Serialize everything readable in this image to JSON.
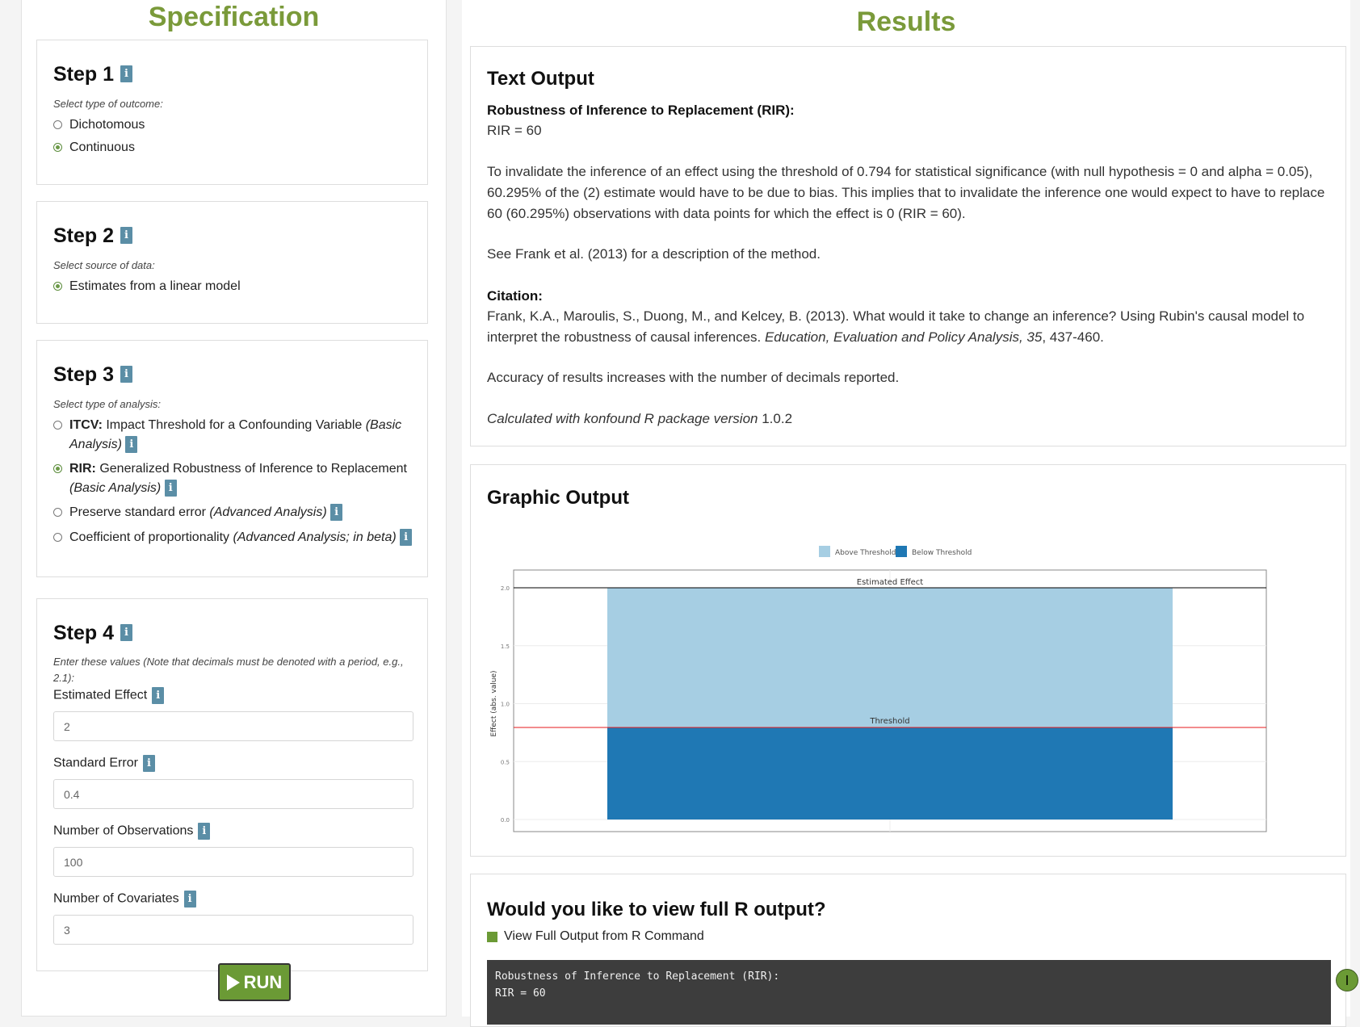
{
  "specification": {
    "title": "Specification",
    "step1": {
      "title": "Step 1",
      "hint": "Select type of outcome:",
      "options": [
        {
          "label": "Dichotomous",
          "checked": false
        },
        {
          "label": "Continuous",
          "checked": true
        }
      ]
    },
    "step2": {
      "title": "Step 2",
      "hint": "Select source of data:",
      "options": [
        {
          "label": "Estimates from a linear model",
          "checked": true
        }
      ]
    },
    "step3": {
      "title": "Step 3",
      "hint": "Select type of analysis:",
      "options": [
        {
          "strong": "ITCV:",
          "text": " Impact Threshold for a Confounding Variable ",
          "em": "(Basic Analysis)",
          "checked": false
        },
        {
          "strong": "RIR:",
          "text": " Generalized Robustness of Inference to Replacement ",
          "em": "(Basic Analysis)",
          "checked": true
        },
        {
          "strong": "",
          "text": "Preserve standard error ",
          "em": "(Advanced Analysis)",
          "checked": false
        },
        {
          "strong": "",
          "text": "Coefficient of proportionality ",
          "em": "(Advanced Analysis; in beta)",
          "checked": false
        }
      ]
    },
    "step4": {
      "title": "Step 4",
      "hint": "Enter these values (Note that decimals must be denoted with a period, e.g., 2.1):",
      "fields": [
        {
          "label": "Estimated Effect",
          "value": "2"
        },
        {
          "label": "Standard Error",
          "value": "0.4"
        },
        {
          "label": "Number of Observations",
          "value": "100"
        },
        {
          "label": "Number of Covariates",
          "value": "3"
        }
      ]
    },
    "run_label": "RUN",
    "info_glyph": "i"
  },
  "results": {
    "title": "Results",
    "text_output": {
      "title": "Text Output",
      "rir_heading": "Robustness of Inference to Replacement (RIR):",
      "rir_value": "RIR = 60",
      "paragraph": "To invalidate the inference of an effect using the threshold of 0.794 for statistical significance (with null hypothesis = 0 and alpha = 0.05), 60.295% of the (2) estimate would have to be due to bias. This implies that to invalidate the inference one would expect to have to replace 60 (60.295%) observations with data points for which the effect is 0 (RIR = 60).",
      "see_also": "See Frank et al. (2013) for a description of the method.",
      "citation_heading": "Citation:",
      "citation_plain": "Frank, K.A., Maroulis, S., Duong, M., and Kelcey, B. (2013). What would it take to change an inference? Using Rubin's causal model to interpret the robustness of causal inferences. ",
      "citation_journal": "Education, Evaluation and Policy Analysis, 35",
      "citation_pages": ", 437-460.",
      "accuracy": "Accuracy of results increases with the number of decimals reported.",
      "calc_italic": "Calculated with konfound R package version",
      "calc_version": " 1.0.2"
    },
    "graphic_output": {
      "title": "Graphic Output"
    },
    "full_output": {
      "title": "Would you like to view full R output?",
      "checkbox_label": "View Full Output from R Command",
      "console_text": "Robustness of Inference to Replacement (RIR):\nRIR = 60"
    }
  },
  "chart_data": {
    "type": "bar",
    "categories": [
      ""
    ],
    "series": [
      {
        "name": "Above Threshold",
        "values": [
          1.206
        ],
        "color": "#a6cee3"
      },
      {
        "name": "Below Threshold",
        "values": [
          0.794
        ],
        "color": "#1f78b4"
      }
    ],
    "estimated_effect": 2.0,
    "threshold": 0.794,
    "line_labels": [
      "Estimated Effect",
      "Threshold"
    ],
    "ylabel": "Effect (abs. value)",
    "ylim": [
      0,
      2.0
    ],
    "yticks": [
      "0.0",
      "0.5",
      "1.0",
      "1.5",
      "2.0"
    ],
    "legend_position": "top",
    "threshold_color": "#e41a1c"
  }
}
